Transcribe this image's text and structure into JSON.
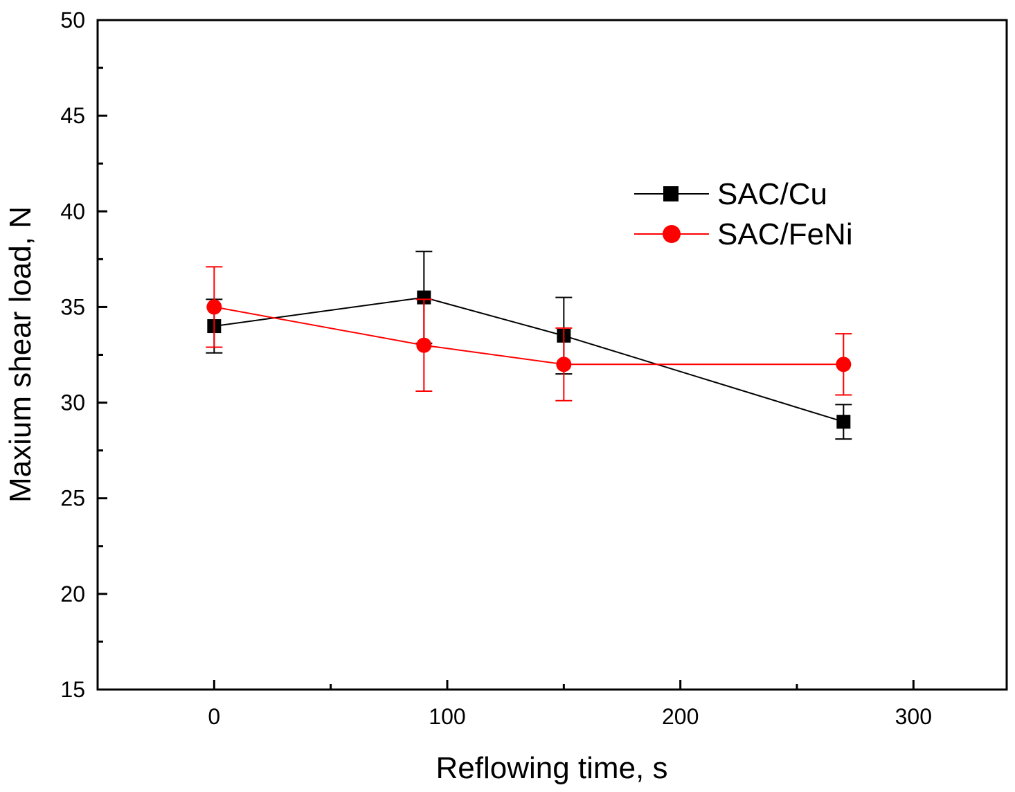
{
  "chart_data": {
    "type": "line",
    "title": "",
    "xlabel": "Reflowing time, s",
    "ylabel": "Maxium shear load, N",
    "xlim": [
      -50,
      340
    ],
    "ylim": [
      15,
      50
    ],
    "xticks": [
      0,
      100,
      200,
      300
    ],
    "xticks_minor": [
      50,
      150,
      250
    ],
    "yticks": [
      15,
      20,
      25,
      30,
      35,
      40,
      45,
      50
    ],
    "yticks_minor": [
      17.5,
      22.5,
      27.5,
      32.5,
      37.5,
      42.5,
      47.5
    ],
    "legend_position": "upper-right",
    "series": [
      {
        "name": "SAC/Cu",
        "color": "#000000",
        "marker": "square",
        "x": [
          0,
          90,
          150,
          270
        ],
        "y": [
          34.0,
          35.5,
          33.5,
          29.0
        ],
        "err": [
          1.4,
          2.4,
          2.0,
          0.9
        ]
      },
      {
        "name": "SAC/FeNi",
        "color": "#ff0000",
        "marker": "circle",
        "x": [
          0,
          90,
          150,
          270
        ],
        "y": [
          35.0,
          33.0,
          32.0,
          32.0
        ],
        "err": [
          2.1,
          2.4,
          1.9,
          1.6
        ]
      }
    ]
  }
}
